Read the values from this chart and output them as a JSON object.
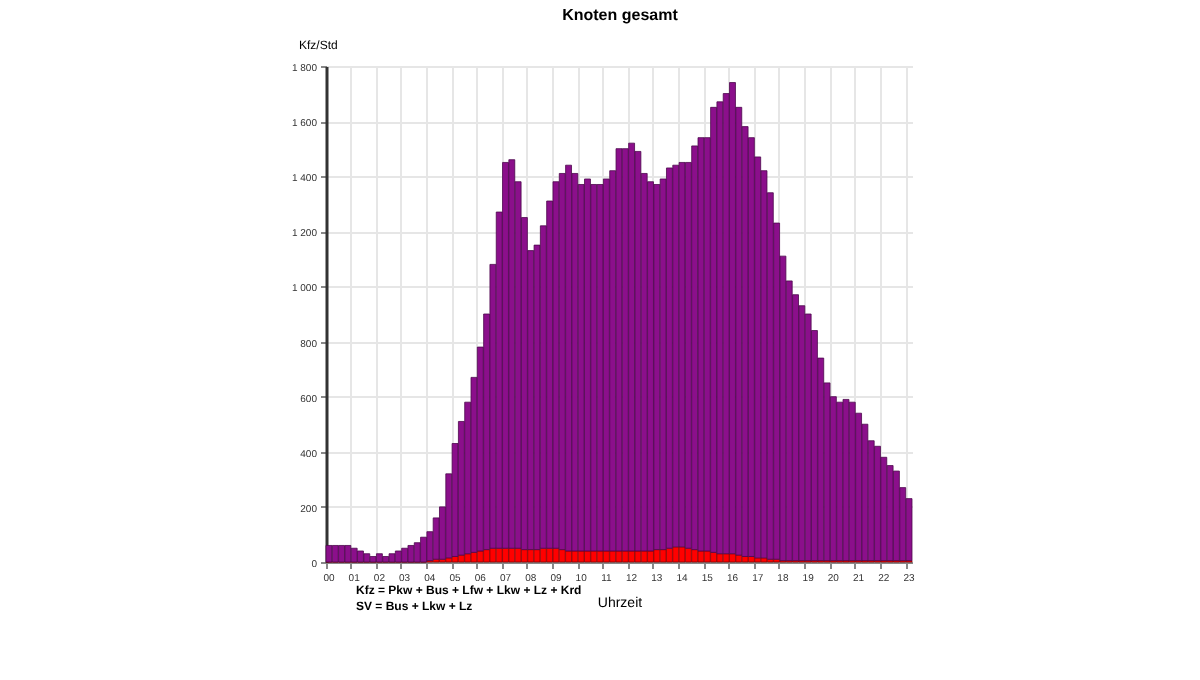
{
  "chart_data": {
    "type": "bar",
    "title": "Knoten gesamt",
    "xlabel": "Uhrzeit",
    "ylabel": "Kfz/Std",
    "stacked": true,
    "annotations": [
      "Kfz = Pkw + Bus + Lfw + Lkw + Lz + Krd",
      "SV = Bus + Lkw + Lz"
    ],
    "categories": [
      "00",
      null,
      null,
      null,
      "01",
      null,
      null,
      null,
      "02",
      null,
      null,
      null,
      "03",
      null,
      null,
      null,
      "04",
      null,
      null,
      null,
      "05",
      null,
      null,
      null,
      "06",
      null,
      null,
      null,
      "07",
      null,
      null,
      null,
      "08",
      null,
      null,
      null,
      "09",
      null,
      null,
      null,
      "10",
      null,
      null,
      null,
      "11",
      null,
      null,
      null,
      "12",
      null,
      null,
      null,
      "13",
      null,
      null,
      null,
      "14",
      null,
      null,
      null,
      "15",
      null,
      null,
      null,
      "16",
      null,
      null,
      null,
      "17",
      null,
      null,
      null,
      "18",
      null,
      null,
      null,
      "19",
      null,
      null,
      null,
      "20",
      null,
      null,
      null,
      "21",
      null,
      null,
      null,
      "22",
      null,
      null,
      null,
      "23"
    ],
    "series": [
      {
        "color": "#ff0000",
        "values": [
          0,
          0,
          0,
          0,
          0,
          0,
          0,
          0,
          0,
          0,
          0,
          0,
          0,
          0,
          0,
          0,
          5,
          10,
          10,
          15,
          20,
          25,
          30,
          35,
          40,
          45,
          50,
          50,
          50,
          50,
          50,
          45,
          45,
          45,
          50,
          50,
          50,
          45,
          40,
          40,
          40,
          40,
          40,
          40,
          40,
          40,
          40,
          40,
          40,
          40,
          40,
          40,
          45,
          45,
          50,
          55,
          55,
          50,
          45,
          40,
          40,
          35,
          30,
          30,
          30,
          25,
          20,
          20,
          15,
          15,
          10,
          10,
          5,
          5,
          5,
          5,
          5,
          5,
          5,
          5,
          5,
          5,
          5,
          5,
          5,
          5,
          5,
          5,
          5,
          5,
          5,
          5,
          5
        ]
      },
      {
        "color": "#8b0f8b",
        "values": [
          60,
          60,
          60,
          60,
          50,
          40,
          30,
          20,
          30,
          20,
          30,
          40,
          50,
          60,
          70,
          90,
          105,
          150,
          190,
          305,
          410,
          485,
          550,
          635,
          740,
          855,
          1030,
          1220,
          1400,
          1410,
          1330,
          1205,
          1085,
          1105,
          1170,
          1260,
          1330,
          1365,
          1400,
          1370,
          1330,
          1350,
          1330,
          1330,
          1350,
          1380,
          1460,
          1460,
          1480,
          1450,
          1370,
          1340,
          1325,
          1345,
          1380,
          1385,
          1395,
          1400,
          1465,
          1500,
          1500,
          1615,
          1640,
          1670,
          1710,
          1625,
          1560,
          1520,
          1455,
          1405,
          1330,
          1220,
          1105,
          1015,
          965,
          925,
          895,
          835,
          735,
          645,
          595,
          575,
          585,
          575,
          535,
          495,
          435,
          415,
          375,
          345,
          325,
          265,
          225
        ]
      }
    ],
    "ylim": [
      0,
      1800
    ],
    "yticks": [
      0,
      200,
      400,
      600,
      800,
      {
        "value": 1000,
        "label": "1 000"
      },
      {
        "value": 1200,
        "label": "1 200"
      },
      {
        "value": 1400,
        "label": "1 400"
      },
      {
        "value": 1600,
        "label": "1 600"
      },
      {
        "value": 1800,
        "label": "1 800"
      }
    ],
    "grid": true
  }
}
